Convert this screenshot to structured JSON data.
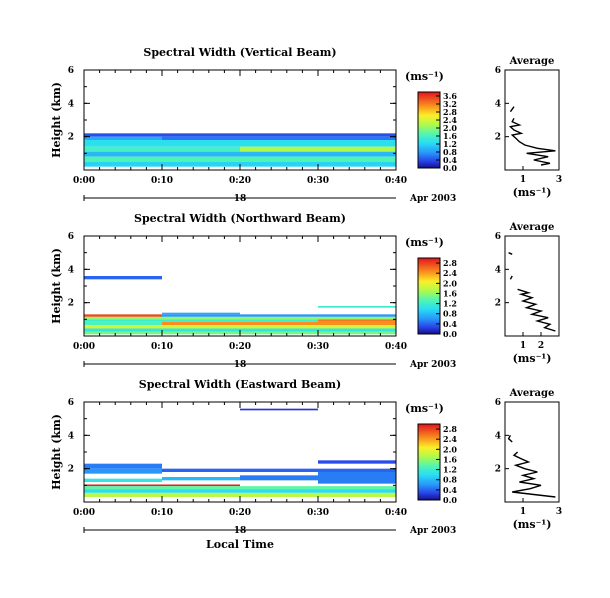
{
  "figure": {
    "x_axis_label": "Local Time",
    "date_label": "Apr 2003",
    "day_marker": "18",
    "x_ticks": [
      "0:00",
      "0:10",
      "0:20",
      "0:30",
      "0:40"
    ],
    "y_axis_label": "Height (km)",
    "y_ticks": [
      "2",
      "4",
      "6"
    ],
    "unit_label": "(ms⁻¹)",
    "average_title": "Average",
    "average_unit": "(ms⁻¹)"
  },
  "chart_data": [
    {
      "type": "heatmap",
      "title": "Spectral Width (Vertical Beam)",
      "xlabel": "",
      "ylabel": "Height (km)",
      "xlim": [
        "0:00",
        "0:40"
      ],
      "ylim": [
        0,
        6
      ],
      "colorbar": {
        "ticks": [
          "0.0",
          "0.4",
          "0.8",
          "1.2",
          "1.6",
          "2.0",
          "2.4",
          "2.8",
          "3.2",
          "3.6"
        ],
        "max": 3.8
      },
      "bands": [
        {
          "t0": 0,
          "t1": 40,
          "h0": 2.0,
          "h1": 2.2,
          "v": 0.4
        },
        {
          "t0": 0,
          "t1": 10,
          "h0": 1.8,
          "h1": 2.0,
          "v": 0.9
        },
        {
          "t0": 10,
          "t1": 40,
          "h0": 1.8,
          "h1": 2.0,
          "v": 0.6
        },
        {
          "t0": 0,
          "t1": 40,
          "h0": 1.4,
          "h1": 1.8,
          "v": 1.3
        },
        {
          "t0": 0,
          "t1": 20,
          "h0": 1.1,
          "h1": 1.4,
          "v": 1.6
        },
        {
          "t0": 20,
          "t1": 40,
          "h0": 1.1,
          "h1": 1.4,
          "v": 2.2
        },
        {
          "t0": 0,
          "t1": 40,
          "h0": 0.8,
          "h1": 1.1,
          "v": 1.0
        },
        {
          "t0": 0,
          "t1": 40,
          "h0": 0.5,
          "h1": 0.8,
          "v": 1.7
        },
        {
          "t0": 0,
          "t1": 40,
          "h0": 0.2,
          "h1": 0.5,
          "v": 1.2
        }
      ],
      "average": {
        "xlim": [
          0,
          3
        ],
        "xticks": [
          "1",
          "3"
        ],
        "yticks": [
          "2",
          "4",
          "6"
        ],
        "points": [
          [
            2.0,
            0.3
          ],
          [
            2.5,
            0.4
          ],
          [
            1.6,
            0.6
          ],
          [
            2.4,
            0.8
          ],
          [
            1.2,
            1.0
          ],
          [
            2.8,
            1.15
          ],
          [
            1.8,
            1.3
          ],
          [
            1.1,
            1.5
          ],
          [
            0.8,
            1.7
          ],
          [
            0.6,
            1.9
          ],
          [
            0.4,
            2.1
          ],
          [
            0.9,
            2.2
          ],
          [
            0.5,
            2.4
          ],
          [
            0.3,
            2.6
          ],
          [
            0.8,
            2.7
          ],
          [
            0.4,
            2.9
          ],
          [
            0.5,
            3.1
          ]
        ],
        "points2": [
          [
            0.3,
            3.5
          ],
          [
            0.5,
            3.8
          ]
        ]
      }
    },
    {
      "type": "heatmap",
      "title": "Spectral Width (Northward Beam)",
      "xlabel": "",
      "ylabel": "Height (km)",
      "xlim": [
        "0:00",
        "0:40"
      ],
      "ylim": [
        0,
        6
      ],
      "colorbar": {
        "ticks": [
          "0.0",
          "0.4",
          "0.8",
          "1.2",
          "1.6",
          "2.0",
          "2.4",
          "2.8"
        ],
        "max": 3.0
      },
      "bands": [
        {
          "t0": 0,
          "t1": 10,
          "h0": 3.4,
          "h1": 3.6,
          "v": 0.4
        },
        {
          "t0": 30,
          "t1": 40,
          "h0": 1.7,
          "h1": 1.8,
          "v": 1.2
        },
        {
          "t0": 10,
          "t1": 20,
          "h0": 1.3,
          "h1": 1.4,
          "v": 0.7
        },
        {
          "t0": 0,
          "t1": 10,
          "h0": 1.15,
          "h1": 1.3,
          "v": 2.8
        },
        {
          "t0": 10,
          "t1": 40,
          "h0": 1.15,
          "h1": 1.3,
          "v": 0.6
        },
        {
          "t0": 0,
          "t1": 40,
          "h0": 1.0,
          "h1": 1.15,
          "v": 1.6
        },
        {
          "t0": 30,
          "t1": 40,
          "h0": 0.85,
          "h1": 1.0,
          "v": 2.6
        },
        {
          "t0": 0,
          "t1": 30,
          "h0": 0.85,
          "h1": 1.0,
          "v": 1.2
        },
        {
          "t0": 10,
          "t1": 40,
          "h0": 0.65,
          "h1": 0.85,
          "v": 2.5
        },
        {
          "t0": 0,
          "t1": 10,
          "h0": 0.65,
          "h1": 0.85,
          "v": 1.3
        },
        {
          "t0": 0,
          "t1": 40,
          "h0": 0.45,
          "h1": 0.65,
          "v": 1.9
        },
        {
          "t0": 0,
          "t1": 40,
          "h0": 0.25,
          "h1": 0.45,
          "v": 1.1
        },
        {
          "t0": 0,
          "t1": 40,
          "h0": 0.1,
          "h1": 0.25,
          "v": 1.5
        }
      ],
      "average": {
        "xlim": [
          0,
          3
        ],
        "xticks": [
          "1",
          "2"
        ],
        "yticks": [
          "2",
          "4",
          "6"
        ],
        "points": [
          [
            2.8,
            0.3
          ],
          [
            2.2,
            0.5
          ],
          [
            2.5,
            0.7
          ],
          [
            1.8,
            0.9
          ],
          [
            2.4,
            1.1
          ],
          [
            1.5,
            1.3
          ],
          [
            2.0,
            1.5
          ],
          [
            1.2,
            1.7
          ],
          [
            1.7,
            1.9
          ],
          [
            1.0,
            2.1
          ],
          [
            1.5,
            2.3
          ],
          [
            0.9,
            2.5
          ],
          [
            1.3,
            2.6
          ],
          [
            0.7,
            2.8
          ]
        ],
        "points2": [
          [
            0.3,
            3.4
          ],
          [
            0.4,
            3.6
          ]
        ],
        "points3": [
          [
            0.4,
            4.9
          ],
          [
            0.2,
            5.0
          ]
        ]
      }
    },
    {
      "type": "heatmap",
      "title": "Spectral Width (Eastward Beam)",
      "xlabel": "Local Time",
      "ylabel": "Height (km)",
      "xlim": [
        "0:00",
        "0:40"
      ],
      "ylim": [
        0,
        6
      ],
      "colorbar": {
        "ticks": [
          "0.0",
          "0.4",
          "0.8",
          "1.2",
          "1.6",
          "2.0",
          "2.4",
          "2.8"
        ],
        "max": 3.0
      },
      "bands": [
        {
          "t0": 20,
          "t1": 30,
          "h0": 5.5,
          "h1": 5.6,
          "v": 0.2
        },
        {
          "t0": 30,
          "t1": 40,
          "h0": 2.3,
          "h1": 2.5,
          "v": 0.3
        },
        {
          "t0": 0,
          "t1": 10,
          "h0": 2.0,
          "h1": 2.3,
          "v": 0.5
        },
        {
          "t0": 10,
          "t1": 40,
          "h0": 1.8,
          "h1": 2.0,
          "v": 0.4
        },
        {
          "t0": 0,
          "t1": 10,
          "h0": 1.7,
          "h1": 2.0,
          "v": 0.6
        },
        {
          "t0": 20,
          "t1": 30,
          "h0": 1.3,
          "h1": 1.6,
          "v": 0.5
        },
        {
          "t0": 30,
          "t1": 40,
          "h0": 1.1,
          "h1": 1.8,
          "v": 0.5
        },
        {
          "t0": 10,
          "t1": 20,
          "h0": 1.3,
          "h1": 1.5,
          "v": 0.8
        },
        {
          "t0": 0,
          "t1": 10,
          "h0": 1.2,
          "h1": 1.4,
          "v": 1.1
        },
        {
          "t0": 0,
          "t1": 20,
          "h0": 0.95,
          "h1": 1.05,
          "v": 3.0
        },
        {
          "t0": 0,
          "t1": 40,
          "h0": 0.75,
          "h1": 0.95,
          "v": 1.4
        },
        {
          "t0": 0,
          "t1": 40,
          "h0": 0.55,
          "h1": 0.75,
          "v": 1.0
        },
        {
          "t0": 0,
          "t1": 40,
          "h0": 0.3,
          "h1": 0.55,
          "v": 1.8
        }
      ],
      "average": {
        "xlim": [
          0,
          3
        ],
        "xticks": [
          "1",
          "3"
        ],
        "yticks": [
          "2",
          "4",
          "6"
        ],
        "points": [
          [
            2.8,
            0.3
          ],
          [
            0.4,
            0.6
          ],
          [
            1.4,
            0.8
          ],
          [
            2.0,
            1.0
          ],
          [
            0.8,
            1.2
          ],
          [
            1.6,
            1.4
          ],
          [
            1.0,
            1.6
          ],
          [
            1.8,
            1.8
          ],
          [
            1.1,
            2.0
          ],
          [
            0.6,
            2.2
          ],
          [
            1.3,
            2.4
          ],
          [
            0.9,
            2.6
          ],
          [
            0.5,
            2.8
          ],
          [
            0.7,
            3.0
          ]
        ],
        "points2": [
          [
            0.4,
            3.6
          ],
          [
            0.2,
            3.8
          ],
          [
            0.3,
            4.0
          ]
        ]
      }
    }
  ]
}
